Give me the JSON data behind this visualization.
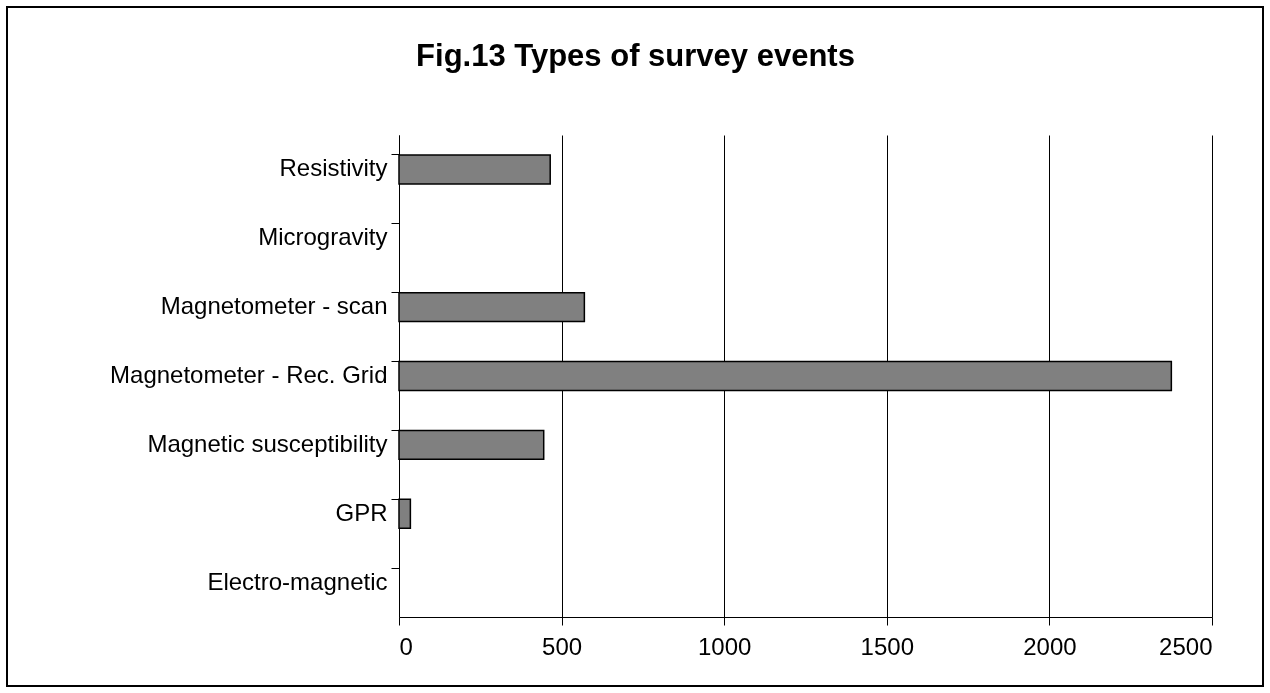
{
  "chart_data": {
    "type": "bar",
    "orientation": "horizontal",
    "title": "Fig.13 Types of survey events",
    "categories": [
      "Resistivity",
      "Microgravity",
      "Magnetometer - scan",
      "Magnetometer - Rec. Grid",
      "Magnetic susceptibility",
      "GPR",
      "Electro-magnetic"
    ],
    "values": [
      465,
      0,
      570,
      2375,
      445,
      35,
      0
    ],
    "color": "#808080",
    "xlim": [
      0,
      2500
    ],
    "xticks": [
      0,
      500,
      1000,
      1500,
      2000,
      2500
    ],
    "grid": "x"
  }
}
